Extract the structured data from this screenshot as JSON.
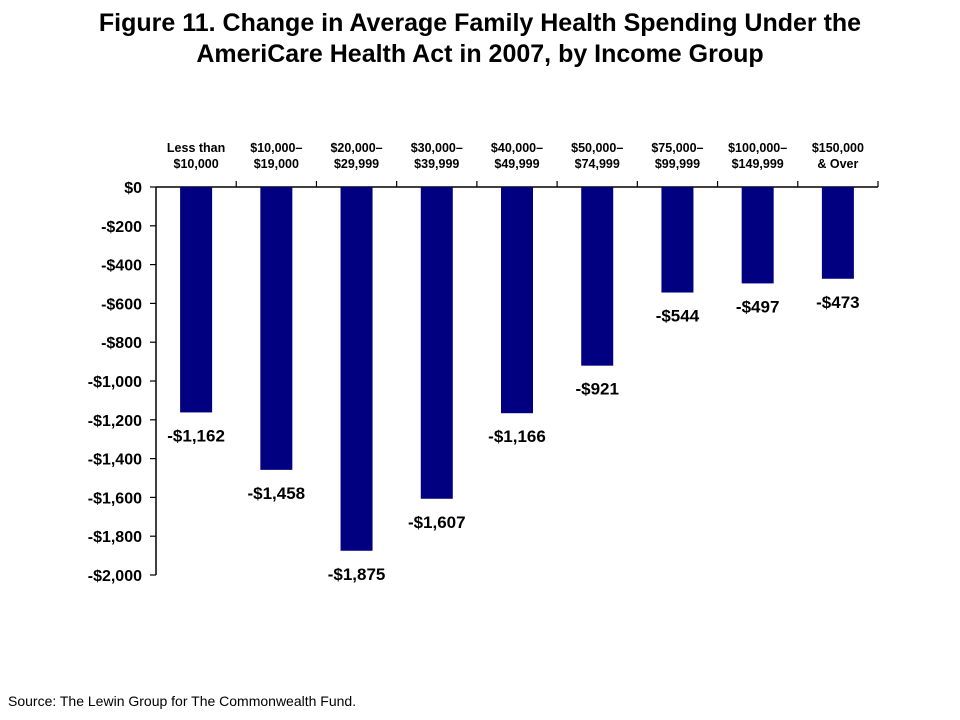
{
  "title_lines": [
    "Figure 11. Change in Average Family Health Spending Under the",
    "AmeriCare Health Act in 2007, by Income Group"
  ],
  "source": "Source: The Lewin Group for The Commonwealth Fund.",
  "colors": {
    "bar": "#000080",
    "axis": "#000000",
    "text": "#000000"
  },
  "chart_data": {
    "type": "bar",
    "categories": [
      [
        "Less than",
        "$10,000"
      ],
      [
        "$10,000–",
        "$19,000"
      ],
      [
        "$20,000–",
        "$29,999"
      ],
      [
        "$30,000–",
        "$39,999"
      ],
      [
        "$40,000–",
        "$49,999"
      ],
      [
        "$50,000–",
        "$74,999"
      ],
      [
        "$75,000–",
        "$99,999"
      ],
      [
        "$100,000–",
        "$149,999"
      ],
      [
        "$150,000",
        "& Over"
      ]
    ],
    "values": [
      -1162,
      -1458,
      -1875,
      -1607,
      -1166,
      -921,
      -544,
      -497,
      -473
    ],
    "data_labels": [
      "-$1,162",
      "-$1,458",
      "-$1,875",
      "-$1,607",
      "-$1,166",
      "-$921",
      "-$544",
      "-$497",
      "-$473"
    ],
    "y_ticks": [
      0,
      -200,
      -400,
      -600,
      -800,
      -1000,
      -1200,
      -1400,
      -1600,
      -1800,
      -2000
    ],
    "y_tick_labels": [
      "$0",
      "-$200",
      "-$400",
      "-$600",
      "-$800",
      "-$1,000",
      "-$1,200",
      "-$1,400",
      "-$1,600",
      "-$1,800",
      "-$2,000"
    ],
    "ylim": [
      -2000,
      0
    ],
    "xlabel": "",
    "ylabel": "",
    "legend": "none",
    "grid": false
  }
}
